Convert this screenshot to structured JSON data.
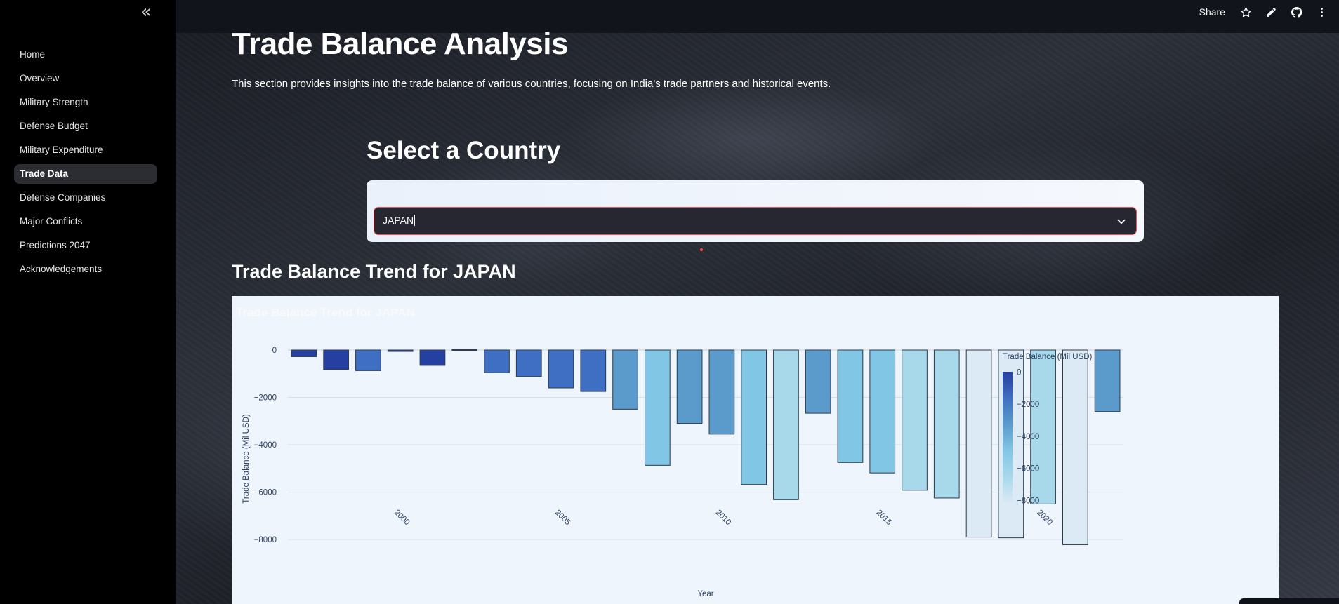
{
  "sidebar": {
    "collapse_icon": "double-chevron-left-icon",
    "items": [
      {
        "label": "Home",
        "active": false
      },
      {
        "label": "Overview",
        "active": false
      },
      {
        "label": "Military Strength",
        "active": false
      },
      {
        "label": "Defense Budget",
        "active": false
      },
      {
        "label": "Military Expenditure",
        "active": false
      },
      {
        "label": "Trade Data",
        "active": true
      },
      {
        "label": "Defense Companies",
        "active": false
      },
      {
        "label": "Major Conflicts",
        "active": false
      },
      {
        "label": "Predictions 2047",
        "active": false
      },
      {
        "label": "Acknowledgements",
        "active": false
      }
    ]
  },
  "header": {
    "share_label": "Share",
    "icons": [
      "star-icon",
      "pencil-icon",
      "github-icon",
      "more-vertical-icon"
    ]
  },
  "main": {
    "title": "Trade Balance Analysis",
    "description": "This section provides insights into the trade balance of various countries, focusing on India's trade partners and historical events.",
    "select_heading": "Select a Country",
    "select": {
      "value": "JAPAN",
      "icon": "chevron-down-icon"
    },
    "chart_heading": "Trade Balance Trend for JAPAN",
    "chart_inner_title": "Trade Balance Trend for JAPAN"
  },
  "colors": {
    "accent": "#ff4b4b",
    "sidebar_bg": "#000000",
    "active_item_bg": "#2b2d33",
    "chart_bg": "#eef5fd",
    "colorscale": [
      "#dceaf6",
      "#a8d9ea",
      "#82c6e6",
      "#5b9bcc",
      "#3e6fc2",
      "#2540a0"
    ]
  },
  "chart_data": {
    "type": "bar",
    "title": "Trade Balance Trend for JAPAN",
    "xlabel": "Year",
    "ylabel": "Trade Balance (Mil USD)",
    "x": [
      1997,
      1998,
      1999,
      2000,
      2001,
      2002,
      2003,
      2004,
      2005,
      2006,
      2007,
      2008,
      2009,
      2010,
      2011,
      2012,
      2013,
      2014,
      2015,
      2016,
      2017,
      2018,
      2019,
      2020,
      2021,
      2022
    ],
    "values": [
      -280,
      -820,
      -870,
      -60,
      -650,
      30,
      -960,
      -1120,
      -1600,
      -1750,
      -2500,
      -4870,
      -3100,
      -3550,
      -5680,
      -6320,
      -2670,
      -4750,
      -5190,
      -5920,
      -6250,
      -7900,
      -7930,
      -6500,
      -8220,
      -2600
    ],
    "x_ticks": [
      "2000",
      "2005",
      "2010",
      "2015",
      "2020"
    ],
    "y_ticks": [
      "0",
      "−2000",
      "−4000",
      "−6000",
      "−8000"
    ],
    "ylim": [
      -8300,
      200
    ],
    "colorbar": {
      "title": "Trade Balance (Mil USD)",
      "ticks": [
        "0",
        "−2000",
        "−4000",
        "−6000",
        "−8000"
      ],
      "range": [
        0,
        -8220
      ]
    },
    "grid": true,
    "legend": "colorbar-right"
  }
}
